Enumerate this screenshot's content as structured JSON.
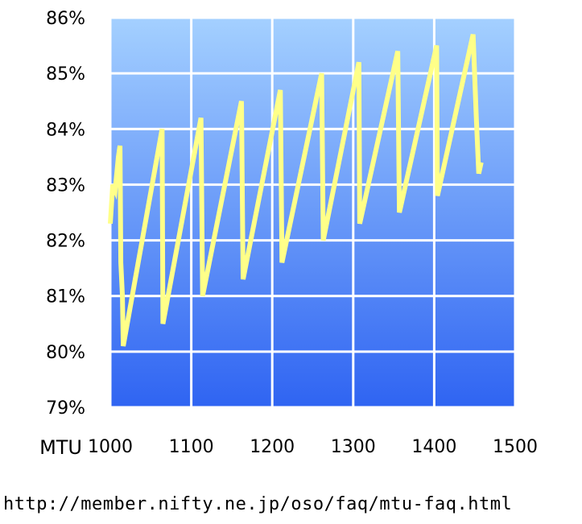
{
  "chart_data": {
    "type": "line",
    "title": "",
    "xlabel": "MTU",
    "ylabel": "",
    "xlim": [
      1000,
      1500
    ],
    "ylim": [
      79,
      86
    ],
    "x_ticks": [
      "1000",
      "1100",
      "1200",
      "1300",
      "1400",
      "1500"
    ],
    "y_ticks": [
      "79%",
      "80%",
      "81%",
      "82%",
      "83%",
      "84%",
      "85%",
      "86%"
    ],
    "grid": true,
    "legend": "none",
    "series": [
      {
        "color": "#ffff88",
        "points": [
          [
            1000,
            82.3
          ],
          [
            1003,
            83.0
          ],
          [
            1006,
            82.9
          ],
          [
            1010,
            83.5
          ],
          [
            1012,
            83.7
          ],
          [
            1013,
            81.6
          ],
          [
            1015,
            81.0
          ],
          [
            1016,
            80.1
          ],
          [
            1064,
            84.0
          ],
          [
            1065,
            80.5
          ],
          [
            1112,
            84.2
          ],
          [
            1114,
            81.0
          ],
          [
            1162,
            84.5
          ],
          [
            1164,
            81.3
          ],
          [
            1210,
            84.7
          ],
          [
            1212,
            81.6
          ],
          [
            1261,
            85.0
          ],
          [
            1263,
            82.0
          ],
          [
            1307,
            85.2
          ],
          [
            1308,
            82.3
          ],
          [
            1355,
            85.4
          ],
          [
            1357,
            82.5
          ],
          [
            1403,
            85.5
          ],
          [
            1404,
            82.8
          ],
          [
            1448,
            85.7
          ],
          [
            1452,
            84.2
          ],
          [
            1455,
            83.2
          ],
          [
            1458,
            83.4
          ]
        ]
      }
    ],
    "colors": {
      "plot_top": "#a4d0ff",
      "plot_bottom": "#2f64f2",
      "grid": "#ffffff",
      "line": "#ffff88"
    }
  },
  "footer": {
    "source_url": "http://member.nifty.ne.jp/oso/faq/mtu-faq.html"
  }
}
